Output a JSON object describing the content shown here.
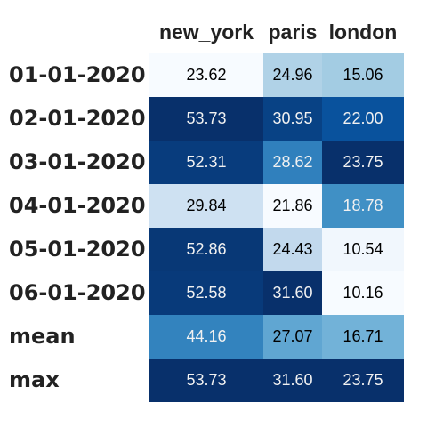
{
  "chart_data": {
    "type": "heatmap",
    "columns": [
      "new_york",
      "paris",
      "london"
    ],
    "rows": [
      "01-01-2020",
      "02-01-2020",
      "03-01-2020",
      "04-01-2020",
      "05-01-2020",
      "06-01-2020",
      "mean",
      "max"
    ],
    "values": [
      [
        23.62,
        24.96,
        15.06
      ],
      [
        53.73,
        30.95,
        22.0
      ],
      [
        52.31,
        28.62,
        23.75
      ],
      [
        29.84,
        21.86,
        18.78
      ],
      [
        52.86,
        24.43,
        10.54
      ],
      [
        52.58,
        31.6,
        10.16
      ],
      [
        44.16,
        27.07,
        16.71
      ],
      [
        53.73,
        31.6,
        23.75
      ]
    ],
    "display": [
      [
        "23.62",
        "24.96",
        "15.06"
      ],
      [
        "53.73",
        "30.95",
        "22.00"
      ],
      [
        "52.31",
        "28.62",
        "23.75"
      ],
      [
        "29.84",
        "21.86",
        "18.78"
      ],
      [
        "52.86",
        "24.43",
        "10.54"
      ],
      [
        "52.58",
        "31.60",
        "10.16"
      ],
      [
        "44.16",
        "27.07",
        "16.71"
      ],
      [
        "53.73",
        "31.60",
        "23.75"
      ]
    ],
    "colormap": "Blues",
    "color_scale": "per-column",
    "colors": {
      "low": "#f7fbff",
      "high": "#08306b",
      "text_dark": "#000000",
      "text_light": "#f1f1f1"
    }
  }
}
